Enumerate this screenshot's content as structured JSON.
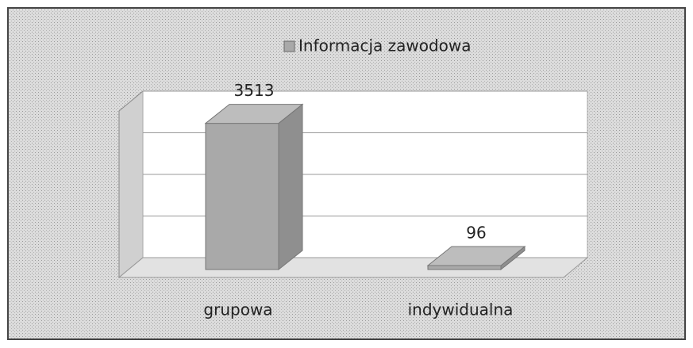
{
  "chart_data": {
    "type": "bar3d",
    "categories": [
      "grupowa",
      "indywidualna"
    ],
    "series": [
      {
        "name": "Informacja zawodowa",
        "color": "#a9a9a9",
        "values": [
          3513,
          96
        ]
      }
    ],
    "ylim": [
      0,
      4000
    ],
    "yticks": [
      0,
      1000,
      2000,
      3000,
      4000
    ],
    "grid": true,
    "legend": "top"
  }
}
